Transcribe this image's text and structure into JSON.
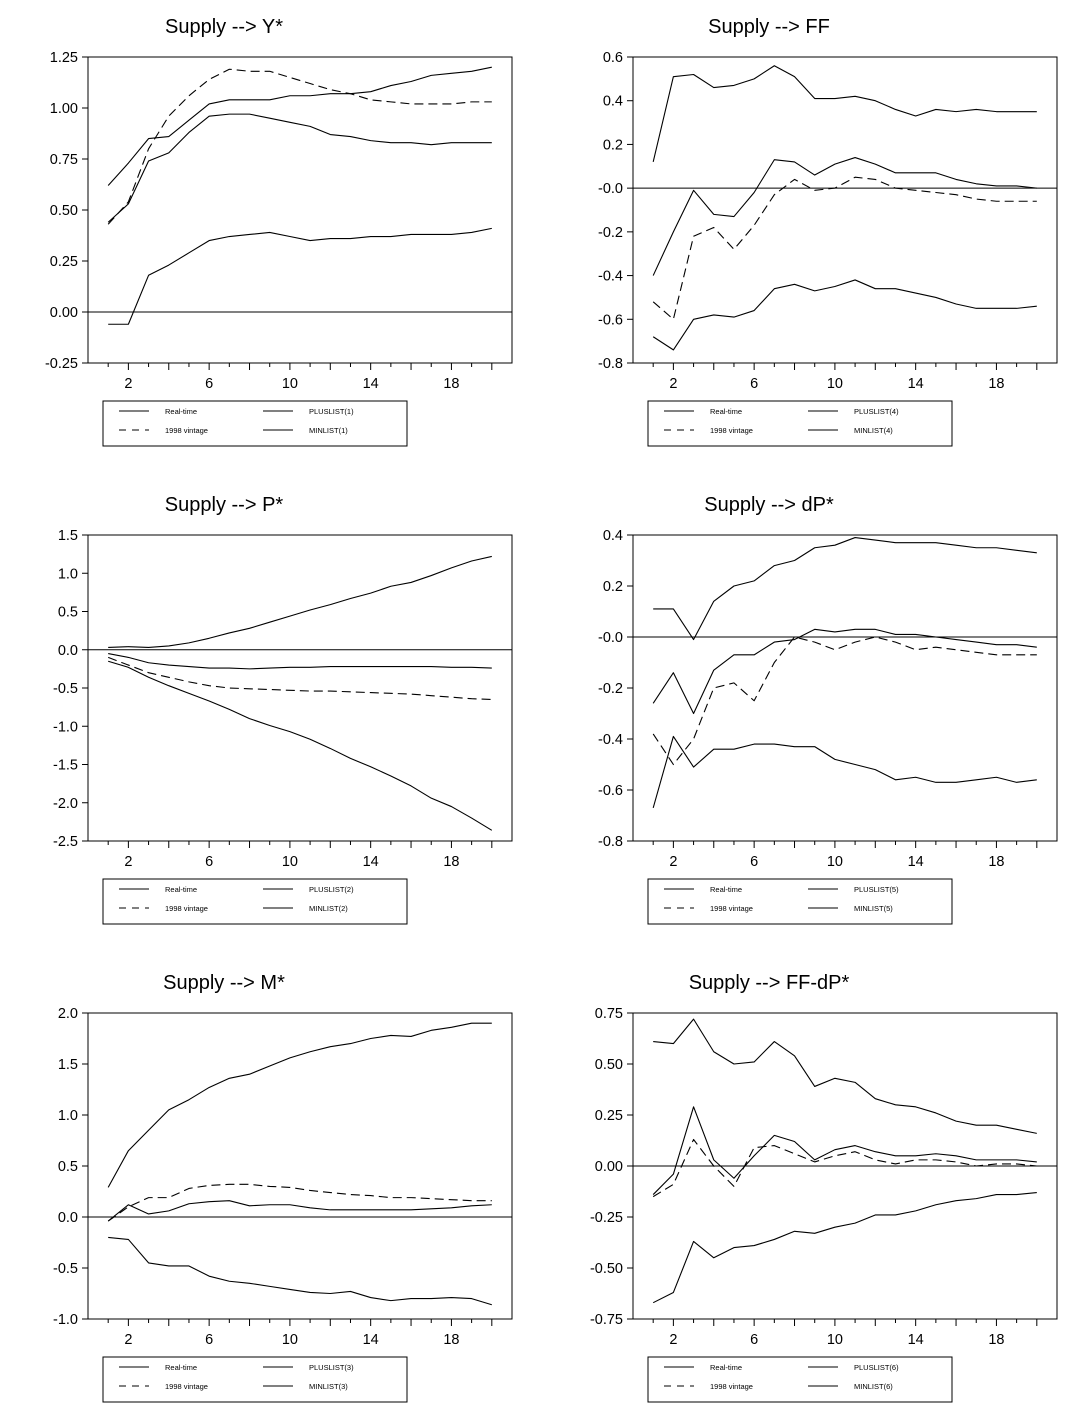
{
  "chart_data": [
    {
      "type": "line",
      "title": "Supply --> Y*",
      "ylim": [
        -0.25,
        1.25
      ],
      "yticks": [
        "-0.25",
        "0.00",
        "0.25",
        "0.50",
        "0.75",
        "1.00",
        "1.25"
      ],
      "xlim": [
        0,
        21
      ],
      "xticks": [
        "2",
        "6",
        "10",
        "14",
        "18"
      ],
      "x": [
        1,
        2,
        3,
        4,
        5,
        6,
        7,
        8,
        9,
        10,
        11,
        12,
        13,
        14,
        15,
        16,
        17,
        18,
        19,
        20
      ],
      "zero_line": true,
      "legend": {
        "placement": "bottom",
        "entries": [
          {
            "label": "Real-time",
            "style": "solid"
          },
          {
            "label": "PLUSLIST(1)",
            "style": "solid"
          },
          {
            "label": "1998 vintage",
            "style": "dashed"
          },
          {
            "label": "MINLIST(1)",
            "style": "solid"
          }
        ]
      },
      "series": [
        {
          "name": "Real-time",
          "style": "solid",
          "values": [
            0.44,
            0.53,
            0.74,
            0.78,
            0.88,
            0.96,
            0.97,
            0.97,
            0.95,
            0.93,
            0.91,
            0.87,
            0.86,
            0.84,
            0.83,
            0.83,
            0.82,
            0.83,
            0.83,
            0.83
          ]
        },
        {
          "name": "PLUSLIST(1)",
          "style": "solid",
          "values": [
            0.62,
            0.73,
            0.85,
            0.86,
            0.94,
            1.02,
            1.04,
            1.04,
            1.04,
            1.06,
            1.06,
            1.07,
            1.07,
            1.08,
            1.11,
            1.13,
            1.16,
            1.17,
            1.18,
            1.2
          ]
        },
        {
          "name": "1998 vintage",
          "style": "dashed",
          "values": [
            0.43,
            0.54,
            0.8,
            0.96,
            1.06,
            1.14,
            1.19,
            1.18,
            1.18,
            1.15,
            1.12,
            1.09,
            1.07,
            1.04,
            1.03,
            1.02,
            1.02,
            1.02,
            1.03,
            1.03
          ]
        },
        {
          "name": "MINLIST(1)",
          "style": "solid",
          "values": [
            -0.06,
            -0.06,
            0.18,
            0.23,
            0.29,
            0.35,
            0.37,
            0.38,
            0.39,
            0.37,
            0.35,
            0.36,
            0.36,
            0.37,
            0.37,
            0.38,
            0.38,
            0.38,
            0.39,
            0.41
          ]
        }
      ]
    },
    {
      "type": "line",
      "title": "Supply --> FF",
      "ylim": [
        -0.8,
        0.6
      ],
      "yticks": [
        "-0.8",
        "-0.6",
        "-0.4",
        "-0.2",
        "-0.0",
        "0.2",
        "0.4",
        "0.6"
      ],
      "xlim": [
        0,
        21
      ],
      "xticks": [
        "2",
        "6",
        "10",
        "14",
        "18"
      ],
      "x": [
        1,
        2,
        3,
        4,
        5,
        6,
        7,
        8,
        9,
        10,
        11,
        12,
        13,
        14,
        15,
        16,
        17,
        18,
        19,
        20
      ],
      "zero_line": true,
      "legend": {
        "placement": "bottom",
        "entries": [
          {
            "label": "Real-time",
            "style": "solid"
          },
          {
            "label": "PLUSLIST(4)",
            "style": "solid"
          },
          {
            "label": "1998 vintage",
            "style": "dashed"
          },
          {
            "label": "MINLIST(4)",
            "style": "solid"
          }
        ]
      },
      "series": [
        {
          "name": "Real-time",
          "style": "solid",
          "values": [
            -0.4,
            -0.2,
            -0.01,
            -0.12,
            -0.13,
            -0.02,
            0.13,
            0.12,
            0.06,
            0.11,
            0.14,
            0.11,
            0.07,
            0.07,
            0.07,
            0.04,
            0.02,
            0.01,
            0.01,
            0.0
          ]
        },
        {
          "name": "PLUSLIST(4)",
          "style": "solid",
          "values": [
            0.12,
            0.51,
            0.52,
            0.46,
            0.47,
            0.5,
            0.56,
            0.51,
            0.41,
            0.41,
            0.42,
            0.4,
            0.36,
            0.33,
            0.36,
            0.35,
            0.36,
            0.35,
            0.35,
            0.35
          ]
        },
        {
          "name": "1998 vintage",
          "style": "dashed",
          "values": [
            -0.52,
            -0.6,
            -0.22,
            -0.18,
            -0.28,
            -0.17,
            -0.03,
            0.04,
            -0.01,
            0.0,
            0.05,
            0.04,
            0.0,
            -0.01,
            -0.02,
            -0.03,
            -0.05,
            -0.06,
            -0.06,
            -0.06
          ]
        },
        {
          "name": "MINLIST(4)",
          "style": "solid",
          "values": [
            -0.68,
            -0.74,
            -0.6,
            -0.58,
            -0.59,
            -0.56,
            -0.46,
            -0.44,
            -0.47,
            -0.45,
            -0.42,
            -0.46,
            -0.46,
            -0.48,
            -0.5,
            -0.53,
            -0.55,
            -0.55,
            -0.55,
            -0.54
          ]
        }
      ]
    },
    {
      "type": "line",
      "title": "Supply --> P*",
      "ylim": [
        -2.5,
        1.5
      ],
      "yticks": [
        "-2.5",
        "-2.0",
        "-1.5",
        "-1.0",
        "-0.5",
        "0.0",
        "0.5",
        "1.0",
        "1.5"
      ],
      "xlim": [
        0,
        21
      ],
      "xticks": [
        "2",
        "6",
        "10",
        "14",
        "18"
      ],
      "x": [
        1,
        2,
        3,
        4,
        5,
        6,
        7,
        8,
        9,
        10,
        11,
        12,
        13,
        14,
        15,
        16,
        17,
        18,
        19,
        20
      ],
      "zero_line": true,
      "legend": {
        "placement": "bottom",
        "entries": [
          {
            "label": "Real-time",
            "style": "solid"
          },
          {
            "label": "PLUSLIST(2)",
            "style": "solid"
          },
          {
            "label": "1998 vintage",
            "style": "dashed"
          },
          {
            "label": "MINLIST(2)",
            "style": "solid"
          }
        ]
      },
      "series": [
        {
          "name": "Real-time",
          "style": "solid",
          "values": [
            -0.05,
            -0.1,
            -0.17,
            -0.2,
            -0.22,
            -0.24,
            -0.24,
            -0.25,
            -0.24,
            -0.23,
            -0.23,
            -0.22,
            -0.22,
            -0.22,
            -0.22,
            -0.22,
            -0.22,
            -0.23,
            -0.23,
            -0.24
          ]
        },
        {
          "name": "PLUSLIST(2)",
          "style": "solid",
          "values": [
            0.03,
            0.04,
            0.03,
            0.05,
            0.09,
            0.15,
            0.22,
            0.28,
            0.36,
            0.44,
            0.52,
            0.59,
            0.67,
            0.74,
            0.83,
            0.88,
            0.97,
            1.07,
            1.16,
            1.22
          ]
        },
        {
          "name": "1998 vintage",
          "style": "dashed",
          "values": [
            -0.1,
            -0.2,
            -0.3,
            -0.36,
            -0.42,
            -0.47,
            -0.5,
            -0.51,
            -0.52,
            -0.53,
            -0.54,
            -0.54,
            -0.55,
            -0.56,
            -0.57,
            -0.58,
            -0.6,
            -0.62,
            -0.64,
            -0.65
          ]
        },
        {
          "name": "MINLIST(2)",
          "style": "solid",
          "values": [
            -0.15,
            -0.23,
            -0.36,
            -0.47,
            -0.57,
            -0.67,
            -0.78,
            -0.9,
            -0.99,
            -1.07,
            -1.17,
            -1.29,
            -1.42,
            -1.53,
            -1.65,
            -1.78,
            -1.94,
            -2.05,
            -2.2,
            -2.36
          ]
        }
      ]
    },
    {
      "type": "line",
      "title": "Supply --> dP*",
      "ylim": [
        -0.8,
        0.4
      ],
      "yticks": [
        "-0.8",
        "-0.6",
        "-0.4",
        "-0.2",
        "-0.0",
        "0.2",
        "0.4"
      ],
      "xlim": [
        0,
        21
      ],
      "xticks": [
        "2",
        "6",
        "10",
        "14",
        "18"
      ],
      "x": [
        1,
        2,
        3,
        4,
        5,
        6,
        7,
        8,
        9,
        10,
        11,
        12,
        13,
        14,
        15,
        16,
        17,
        18,
        19,
        20
      ],
      "zero_line": true,
      "legend": {
        "placement": "bottom",
        "entries": [
          {
            "label": "Real-time",
            "style": "solid"
          },
          {
            "label": "PLUSLIST(5)",
            "style": "solid"
          },
          {
            "label": "1998 vintage",
            "style": "dashed"
          },
          {
            "label": "MINLIST(5)",
            "style": "solid"
          }
        ]
      },
      "series": [
        {
          "name": "Real-time",
          "style": "solid",
          "values": [
            -0.26,
            -0.14,
            -0.3,
            -0.13,
            -0.07,
            -0.07,
            -0.02,
            -0.01,
            0.03,
            0.02,
            0.03,
            0.03,
            0.01,
            0.01,
            0.0,
            -0.01,
            -0.02,
            -0.03,
            -0.03,
            -0.04
          ]
        },
        {
          "name": "PLUSLIST(5)",
          "style": "solid",
          "values": [
            0.11,
            0.11,
            -0.01,
            0.14,
            0.2,
            0.22,
            0.28,
            0.3,
            0.35,
            0.36,
            0.39,
            0.38,
            0.37,
            0.37,
            0.37,
            0.36,
            0.35,
            0.35,
            0.34,
            0.33
          ]
        },
        {
          "name": "1998 vintage",
          "style": "dashed",
          "values": [
            -0.38,
            -0.5,
            -0.4,
            -0.2,
            -0.18,
            -0.25,
            -0.1,
            0.0,
            -0.02,
            -0.05,
            -0.02,
            0.0,
            -0.02,
            -0.05,
            -0.04,
            -0.05,
            -0.06,
            -0.07,
            -0.07,
            -0.07
          ]
        },
        {
          "name": "MINLIST(5)",
          "style": "solid",
          "values": [
            -0.67,
            -0.39,
            -0.51,
            -0.44,
            -0.44,
            -0.42,
            -0.42,
            -0.43,
            -0.43,
            -0.48,
            -0.5,
            -0.52,
            -0.56,
            -0.55,
            -0.57,
            -0.57,
            -0.56,
            -0.55,
            -0.57,
            -0.56
          ]
        }
      ]
    },
    {
      "type": "line",
      "title": "Supply --> M*",
      "ylim": [
        -1.0,
        2.0
      ],
      "yticks": [
        "-1.0",
        "-0.5",
        "0.0",
        "0.5",
        "1.0",
        "1.5",
        "2.0"
      ],
      "xlim": [
        0,
        21
      ],
      "xticks": [
        "2",
        "6",
        "10",
        "14",
        "18"
      ],
      "x": [
        1,
        2,
        3,
        4,
        5,
        6,
        7,
        8,
        9,
        10,
        11,
        12,
        13,
        14,
        15,
        16,
        17,
        18,
        19,
        20
      ],
      "zero_line": true,
      "legend": {
        "placement": "bottom",
        "entries": [
          {
            "label": "Real-time",
            "style": "solid"
          },
          {
            "label": "PLUSLIST(3)",
            "style": "solid"
          },
          {
            "label": "1998 vintage",
            "style": "dashed"
          },
          {
            "label": "MINLIST(3)",
            "style": "solid"
          }
        ]
      },
      "series": [
        {
          "name": "Real-time",
          "style": "solid",
          "values": [
            -0.04,
            0.12,
            0.03,
            0.06,
            0.13,
            0.15,
            0.16,
            0.11,
            0.12,
            0.12,
            0.09,
            0.07,
            0.07,
            0.07,
            0.07,
            0.07,
            0.08,
            0.09,
            0.11,
            0.12
          ]
        },
        {
          "name": "PLUSLIST(3)",
          "style": "solid",
          "values": [
            0.29,
            0.65,
            0.85,
            1.05,
            1.15,
            1.27,
            1.36,
            1.4,
            1.48,
            1.56,
            1.62,
            1.67,
            1.7,
            1.75,
            1.78,
            1.77,
            1.83,
            1.86,
            1.9,
            1.9
          ]
        },
        {
          "name": "1998 vintage",
          "style": "dashed",
          "values": [
            -0.04,
            0.1,
            0.19,
            0.19,
            0.28,
            0.31,
            0.32,
            0.32,
            0.3,
            0.29,
            0.26,
            0.24,
            0.22,
            0.21,
            0.19,
            0.19,
            0.18,
            0.17,
            0.16,
            0.16
          ]
        },
        {
          "name": "MINLIST(3)",
          "style": "solid",
          "values": [
            -0.2,
            -0.22,
            -0.45,
            -0.48,
            -0.48,
            -0.58,
            -0.63,
            -0.65,
            -0.68,
            -0.71,
            -0.74,
            -0.75,
            -0.73,
            -0.79,
            -0.82,
            -0.8,
            -0.8,
            -0.79,
            -0.8,
            -0.86
          ]
        }
      ]
    },
    {
      "type": "line",
      "title": "Supply --> FF-dP*",
      "ylim": [
        -0.75,
        0.75
      ],
      "yticks": [
        "-0.75",
        "-0.50",
        "-0.25",
        "0.00",
        "0.25",
        "0.50",
        "0.75"
      ],
      "xlim": [
        0,
        21
      ],
      "xticks": [
        "2",
        "6",
        "10",
        "14",
        "18"
      ],
      "x": [
        1,
        2,
        3,
        4,
        5,
        6,
        7,
        8,
        9,
        10,
        11,
        12,
        13,
        14,
        15,
        16,
        17,
        18,
        19,
        20
      ],
      "zero_line": true,
      "legend": {
        "placement": "bottom",
        "entries": [
          {
            "label": "Real-time",
            "style": "solid"
          },
          {
            "label": "PLUSLIST(6)",
            "style": "solid"
          },
          {
            "label": "1998 vintage",
            "style": "dashed"
          },
          {
            "label": "MINLIST(6)",
            "style": "solid"
          }
        ]
      },
      "series": [
        {
          "name": "Real-time",
          "style": "solid",
          "values": [
            -0.14,
            -0.04,
            0.29,
            0.03,
            -0.06,
            0.05,
            0.15,
            0.12,
            0.03,
            0.08,
            0.1,
            0.07,
            0.05,
            0.05,
            0.06,
            0.05,
            0.03,
            0.03,
            0.03,
            0.02
          ]
        },
        {
          "name": "PLUSLIST(6)",
          "style": "solid",
          "values": [
            0.61,
            0.6,
            0.72,
            0.56,
            0.5,
            0.51,
            0.61,
            0.54,
            0.39,
            0.43,
            0.41,
            0.33,
            0.3,
            0.29,
            0.26,
            0.22,
            0.2,
            0.2,
            0.18,
            0.16
          ]
        },
        {
          "name": "1998 vintage",
          "style": "dashed",
          "values": [
            -0.15,
            -0.09,
            0.13,
            0.0,
            -0.1,
            0.09,
            0.1,
            0.06,
            0.02,
            0.05,
            0.07,
            0.03,
            0.01,
            0.03,
            0.03,
            0.02,
            0.0,
            0.01,
            0.01,
            0.0
          ]
        },
        {
          "name": "MINLIST(6)",
          "style": "solid",
          "values": [
            -0.67,
            -0.62,
            -0.37,
            -0.45,
            -0.4,
            -0.39,
            -0.36,
            -0.32,
            -0.33,
            -0.3,
            -0.28,
            -0.24,
            -0.24,
            -0.22,
            -0.19,
            -0.17,
            -0.16,
            -0.14,
            -0.14,
            -0.13
          ]
        }
      ]
    }
  ]
}
